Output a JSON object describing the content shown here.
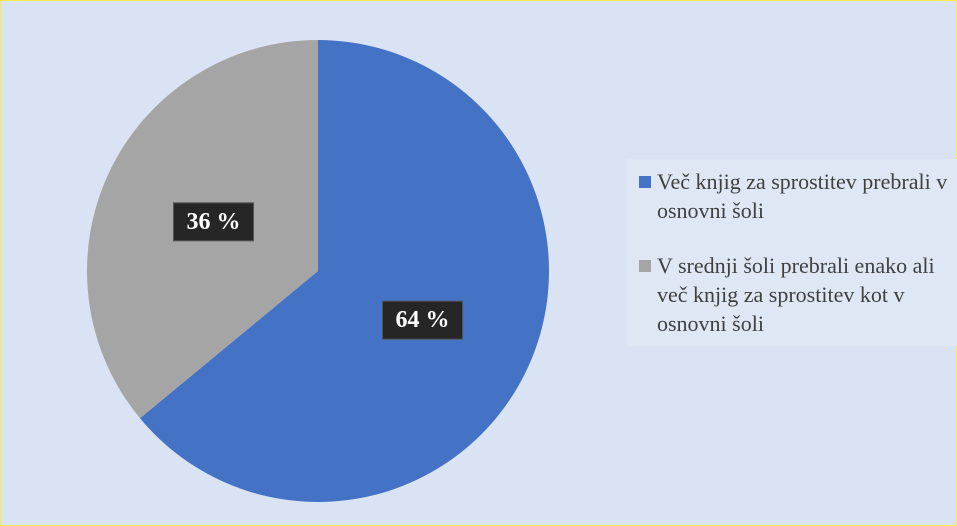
{
  "chart_data": {
    "type": "pie",
    "categories": [
      "Več knjig za sprostitev prebrali v osnovni šoli",
      "V srednji šoli prebrali enako ali več knjig za sprostitev kot v osnovni šoli"
    ],
    "values": [
      64,
      36
    ],
    "value_labels": [
      "64 %",
      "36 %"
    ],
    "colors": [
      "#4472c4",
      "#a5a5a5"
    ],
    "legend": "right"
  }
}
